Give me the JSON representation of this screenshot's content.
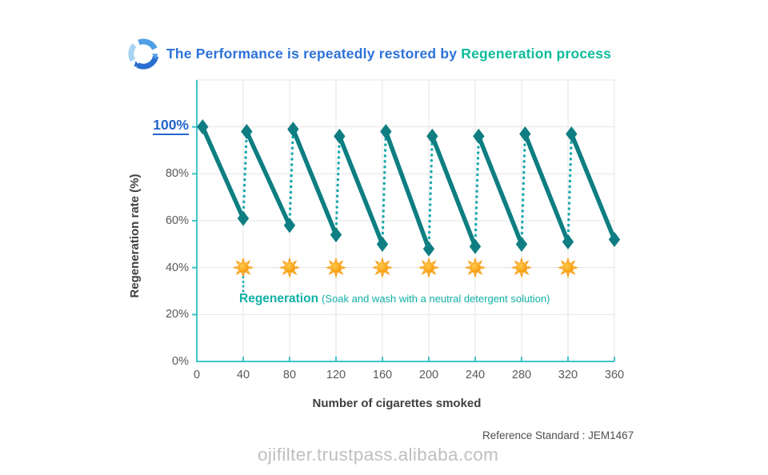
{
  "header": {
    "title_prefix": "The Performance is repeatedly restored by ",
    "title_highlight": "Regeneration process",
    "icon": "circular-refresh-arrows-icon"
  },
  "chart_data": {
    "type": "line",
    "title": "The Performance is repeatedly restored by Regeneration process",
    "xlabel": "Number of cigarettes smoked",
    "ylabel": "Regeneration rate (%)",
    "xlim": [
      0,
      360
    ],
    "ylim": [
      0,
      120
    ],
    "grid": true,
    "x_ticks": [
      0,
      40,
      80,
      120,
      160,
      200,
      240,
      280,
      320,
      360
    ],
    "y_ticks": [
      {
        "value": 0,
        "label": "0%"
      },
      {
        "value": 20,
        "label": "20%"
      },
      {
        "value": 40,
        "label": "40%"
      },
      {
        "value": 60,
        "label": "60%"
      },
      {
        "value": 80,
        "label": "80%"
      }
    ],
    "y_highlight": {
      "value": 100,
      "label": "100%"
    },
    "series": [
      {
        "name": "regeneration-cycles",
        "description": "performance drops while smoking (solid) and is restored by regeneration (dotted)",
        "points": [
          [
            5,
            100
          ],
          [
            40,
            61
          ],
          [
            43,
            98
          ],
          [
            80,
            58
          ],
          [
            83,
            99
          ],
          [
            120,
            54
          ],
          [
            123,
            96
          ],
          [
            160,
            50
          ],
          [
            163,
            98
          ],
          [
            200,
            48
          ],
          [
            203,
            96
          ],
          [
            240,
            49
          ],
          [
            243,
            96
          ],
          [
            280,
            50
          ],
          [
            283,
            97
          ],
          [
            320,
            51
          ],
          [
            323,
            97
          ],
          [
            360,
            52
          ]
        ],
        "segment_pattern": "alternating: solid drop, dotted restore",
        "marker": "diamond"
      }
    ],
    "suns": {
      "x_positions": [
        40,
        80,
        120,
        160,
        200,
        240,
        280,
        320
      ],
      "y_value": 40
    },
    "annotation": {
      "bold": "Regeneration",
      "rest": "(Soak and wash with a neutral detergent solution)",
      "anchor_x": 40
    }
  },
  "footer": {
    "reference": "Reference Standard : JEM1467",
    "watermark": "ojifilter.trustpass.alibaba.com"
  },
  "colors": {
    "title_blue": "#2d72d9",
    "title_teal": "#0dbc9b",
    "line_solid": "#0e7e82",
    "line_dotted": "#19a9ae",
    "axis_teal": "#3fc4c8",
    "grid_gray": "#e4e4e4",
    "tick_gray": "#595959",
    "highlight_blue": "#2565cb",
    "annotation_teal": "#10b0a6",
    "sun_orange": "#f9a01c",
    "sun_core_light": "#ffc94a",
    "sun_core_deep": "#f29100"
  }
}
